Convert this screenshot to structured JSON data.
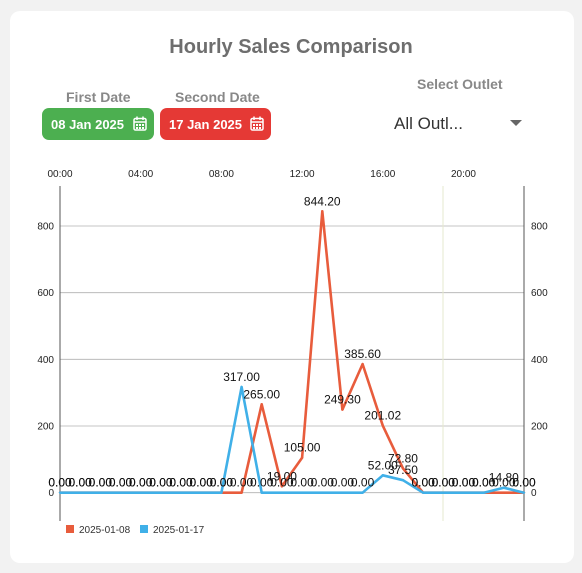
{
  "header": {
    "title": "Hourly Sales Comparison",
    "first_date_label": "First Date",
    "first_date_value": "08 Jan 2025",
    "second_date_label": "Second Date",
    "second_date_value": "17 Jan 2025",
    "outlet_label": "Select Outlet",
    "outlet_value": "All Outl..."
  },
  "colors": {
    "first": "#e85c3c",
    "second": "#40b0e8",
    "first_pill": "#4caf50",
    "second_pill": "#e53935"
  },
  "chart_data": {
    "type": "line",
    "x": [
      0,
      1,
      2,
      3,
      4,
      5,
      6,
      7,
      8,
      9,
      10,
      11,
      12,
      13,
      14,
      15,
      16,
      17,
      18,
      19,
      20,
      21,
      22,
      23
    ],
    "x_ticks": [
      "00:00",
      "04:00",
      "08:00",
      "12:00",
      "16:00",
      "20:00"
    ],
    "x_tick_positions": [
      0,
      4,
      8,
      12,
      16,
      20
    ],
    "y_ticks": [
      0,
      200,
      400,
      600,
      800
    ],
    "ylim": [
      -85,
      920
    ],
    "legend_position": "bottom-left",
    "grid": true,
    "series": [
      {
        "name": "2025-01-08",
        "color": "#e85c3c",
        "values": [
          0,
          0,
          0,
          0,
          0,
          0,
          0,
          0,
          0,
          0,
          265,
          19,
          105,
          844.2,
          249.3,
          385.6,
          201.02,
          72.8,
          0,
          0,
          0,
          0,
          0,
          0
        ],
        "labels": [
          "0.00",
          "0.00",
          "0.00",
          "0.00",
          "0.00",
          "0.00",
          "0.00",
          "0.00",
          "0.00",
          "0.00",
          "265.00",
          "19.00",
          "105.00",
          "844.20",
          "249.30",
          "385.60",
          "201.02",
          "72.80",
          "0.00",
          "0.00",
          "0.00",
          "0.00",
          "0.00",
          "0.00"
        ]
      },
      {
        "name": "2025-01-17",
        "color": "#40b0e8",
        "values": [
          0,
          0,
          0,
          0,
          0,
          0,
          0,
          0,
          0,
          317,
          0,
          0,
          0,
          0,
          0,
          0,
          52,
          37.5,
          0,
          0,
          0,
          0,
          14.8,
          0
        ],
        "labels": [
          "0.00",
          "0.00",
          "0.00",
          "0.00",
          "0.00",
          "0.00",
          "0.00",
          "0.00",
          "0.00",
          "317.00",
          "0.00",
          "0.00",
          "0.00",
          "0.00",
          "0.00",
          "0.00",
          "52.00",
          "37.50",
          "0.00",
          "0.00",
          "0.00",
          "0.00",
          "14.80",
          "0.00"
        ]
      }
    ]
  }
}
